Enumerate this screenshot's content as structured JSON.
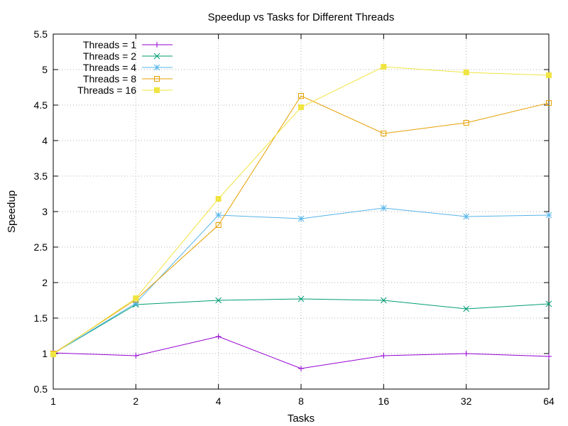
{
  "chart_data": {
    "type": "line",
    "title": "Speedup vs Tasks for Different Threads",
    "xlabel": "Tasks",
    "ylabel": "Speedup",
    "categories": [
      "1",
      "2",
      "4",
      "8",
      "16",
      "32",
      "64"
    ],
    "ylim": [
      0.5,
      5.5
    ],
    "yticks": [
      "0.5",
      "1",
      "1.5",
      "2",
      "2.5",
      "3",
      "3.5",
      "4",
      "4.5",
      "5",
      "5.5"
    ],
    "grid": true,
    "legend_position": "top-left",
    "series": [
      {
        "name": "Threads = 1",
        "color": "#9400d3",
        "marker": "plus",
        "values": [
          1.01,
          0.97,
          1.24,
          0.79,
          0.97,
          1.0,
          0.96
        ]
      },
      {
        "name": "Threads = 2",
        "color": "#009e73",
        "marker": "cross",
        "values": [
          1.0,
          1.69,
          1.75,
          1.77,
          1.75,
          1.63,
          1.7
        ]
      },
      {
        "name": "Threads = 4",
        "color": "#56b4e9",
        "marker": "star",
        "values": [
          1.0,
          1.71,
          2.95,
          2.9,
          3.05,
          2.93,
          2.95
        ]
      },
      {
        "name": "Threads = 8",
        "color": "#e69f00",
        "marker": "open-square",
        "values": [
          1.0,
          1.76,
          2.81,
          4.63,
          4.1,
          4.25,
          4.53
        ]
      },
      {
        "name": "Threads = 16",
        "color": "#f0e442",
        "marker": "filled-square",
        "values": [
          0.99,
          1.78,
          3.18,
          4.47,
          5.04,
          4.96,
          4.92
        ]
      }
    ]
  }
}
